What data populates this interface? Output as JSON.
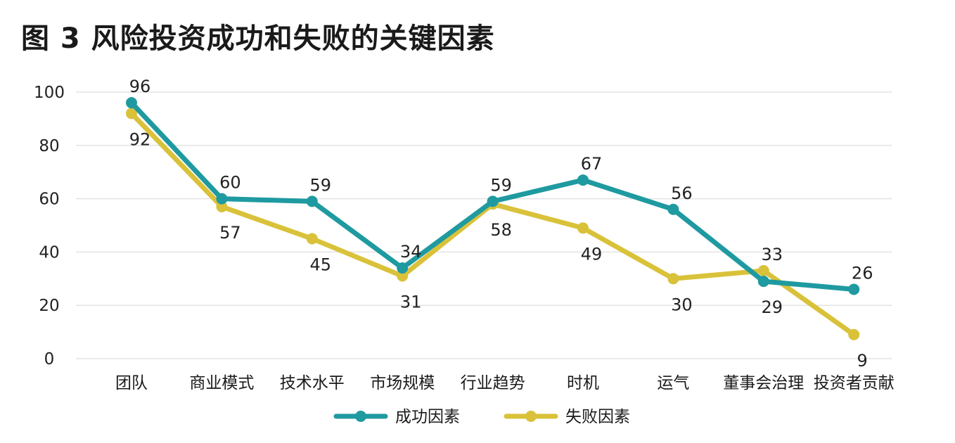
{
  "chart_data": {
    "type": "line",
    "title": "图 3  风险投资成功和失败的关键因素",
    "xlabel": "",
    "ylabel": "",
    "ylim": [
      0,
      100
    ],
    "yticks": [
      0,
      20,
      40,
      60,
      80,
      100
    ],
    "grid": true,
    "legend_position": "bottom",
    "categories": [
      "团队",
      "商业模式",
      "技术水平",
      "市场规模",
      "行业趋势",
      "时机",
      "运气",
      "董事会治理",
      "投资者贡献"
    ],
    "series": [
      {
        "name": "成功因素",
        "color": "#1e9aa0",
        "values": [
          96,
          60,
          59,
          34,
          59,
          67,
          56,
          29,
          26
        ],
        "label_positions": [
          "above",
          "above",
          "above",
          "above",
          "above",
          "above",
          "above",
          "below",
          "above"
        ]
      },
      {
        "name": "失败因素",
        "color": "#d9c23a",
        "values": [
          92,
          57,
          45,
          31,
          58,
          49,
          30,
          33,
          9
        ],
        "label_positions": [
          "below",
          "below",
          "below",
          "below",
          "below",
          "below",
          "below",
          "above",
          "below"
        ]
      }
    ]
  }
}
